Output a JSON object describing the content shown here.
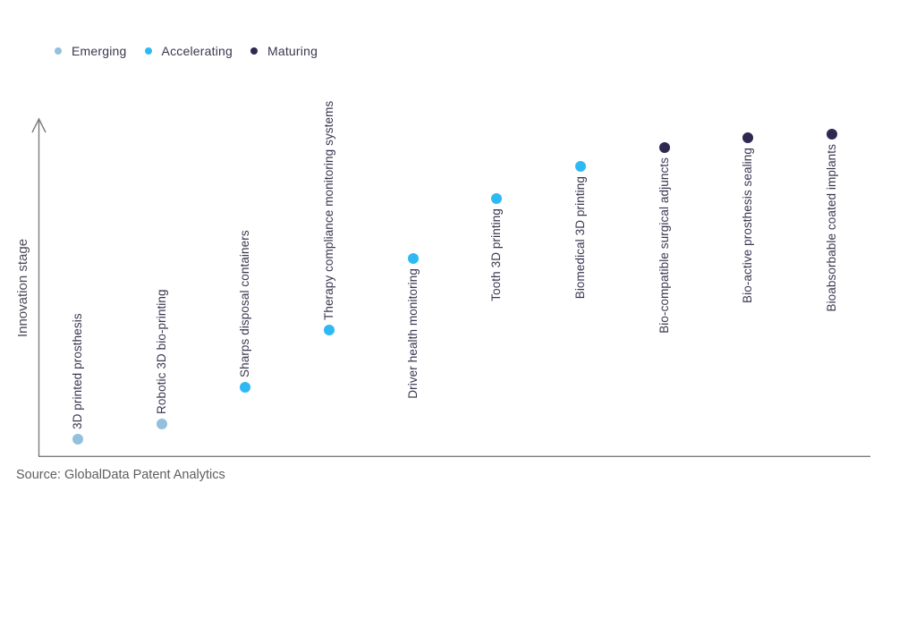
{
  "chart_data": {
    "type": "scatter",
    "title": "",
    "xlabel": "",
    "ylabel": "Innovation stage",
    "source": "Source: GlobalData Patent Analytics",
    "grid": false,
    "legend_position": "top-left",
    "y_axis": "unlabeled arrow axis; point values estimated as percent of axis height",
    "legend": [
      {
        "label": "Emerging",
        "color": "#93C0DC"
      },
      {
        "label": "Accelerating",
        "color": "#2EB9F5"
      },
      {
        "label": "Maturing",
        "color": "#2F2851"
      }
    ],
    "points": [
      {
        "label": "3D printed prosthesis",
        "stage": "Emerging",
        "value": 5
      },
      {
        "label": "Robotic 3D bio-printing",
        "stage": "Emerging",
        "value": 9.5
      },
      {
        "label": "Sharps disposal containers",
        "stage": "Accelerating",
        "value": 20.5
      },
      {
        "label": "Therapy compliance monitoring systems",
        "stage": "Accelerating",
        "value": 37.5
      },
      {
        "label": "Driver health monitoring",
        "stage": "Accelerating",
        "value": 58.5
      },
      {
        "label": "Tooth 3D printing",
        "stage": "Accelerating",
        "value": 76.5
      },
      {
        "label": "Biomedical 3D printing",
        "stage": "Accelerating",
        "value": 86
      },
      {
        "label": "Bio-compatible surgical adjuncts",
        "stage": "Maturing",
        "value": 91.5
      },
      {
        "label": "Bio-active prosthesis sealing",
        "stage": "Maturing",
        "value": 94.5
      },
      {
        "label": "Bioabsorbable coated implants",
        "stage": "Maturing",
        "value": 95.5
      }
    ]
  }
}
